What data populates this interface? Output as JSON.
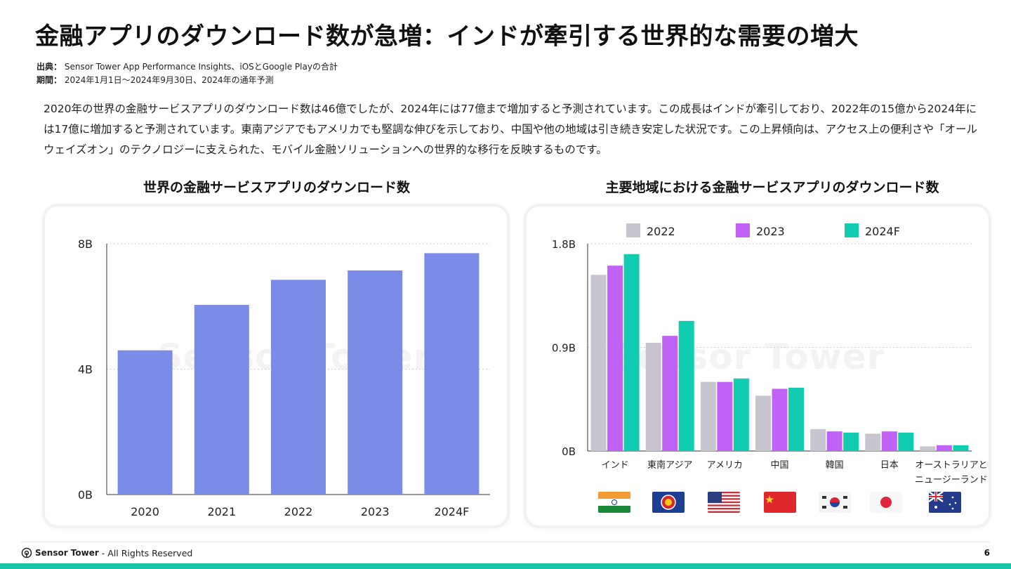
{
  "title": "金融アプリのダウンロード数が急増：インドが牽引する世界的な需要の増大",
  "meta": {
    "source_label": "出典：",
    "source_value": "Sensor Tower App Performance Insights、iOSとGoogle Playの合計",
    "period_label": "期間：",
    "period_value": "2024年1月1日～2024年9月30日、2024年の通年予測"
  },
  "body_text": "2020年の世界の金融サービスアプリのダウンロード数は46億でしたが、2024年には77億まで増加すると予測されています。この成長はインドが牽引しており、2022年の15億から2024年には17億に増加すると予測されています。東南アジアでもアメリカでも堅調な伸びを示しており、中国や他の地域は引き続き安定した状況です。この上昇傾向は、アクセス上の便利さや「オールウェイズオン」のテクノロジーに支えられた、モバイル金融ソリューションへの世界的な移行を反映するものです。",
  "watermark": "Sensor Tower",
  "chart_data": [
    {
      "type": "bar",
      "title": "世界の金融サービスアプリのダウンロード数",
      "categories": [
        "2020",
        "2021",
        "2022",
        "2023",
        "2024F"
      ],
      "values": [
        4.6,
        6.05,
        6.85,
        7.15,
        7.7
      ],
      "ylim": [
        0,
        8
      ],
      "yticks": [
        "0B",
        "4B",
        "8B"
      ],
      "ytick_values": [
        0,
        4,
        8
      ],
      "color": "#7b8ce8",
      "grid": true
    },
    {
      "type": "bar",
      "title": "主要地域における金融サービスアプリのダウンロード数",
      "categories": [
        "インド",
        "東南アジア",
        "アメリカ",
        "中国",
        "韓国",
        "日本",
        "オーストラリアと ニュージーランド"
      ],
      "category_lines": [
        [
          "インド"
        ],
        [
          "東南アジア"
        ],
        [
          "アメリカ"
        ],
        [
          "中国"
        ],
        [
          "韓国"
        ],
        [
          "日本"
        ],
        [
          "オーストラリアと",
          "ニュージーランド"
        ]
      ],
      "series": [
        {
          "name": "2022",
          "color": "#c8c5cf",
          "values": [
            1.53,
            0.94,
            0.6,
            0.48,
            0.19,
            0.15,
            0.04
          ]
        },
        {
          "name": "2023",
          "color": "#c062f5",
          "values": [
            1.61,
            1.0,
            0.6,
            0.54,
            0.17,
            0.17,
            0.05
          ]
        },
        {
          "name": "2024F",
          "color": "#11ccb0",
          "values": [
            1.71,
            1.13,
            0.63,
            0.55,
            0.16,
            0.16,
            0.05
          ]
        }
      ],
      "ylim": [
        0,
        1.8
      ],
      "yticks": [
        "0B",
        "0.9B",
        "1.8B"
      ],
      "ytick_values": [
        0,
        0.9,
        1.8
      ],
      "legend": "top",
      "grid": true
    }
  ],
  "flags": [
    "india-flag",
    "asean-flag",
    "usa-flag",
    "china-flag",
    "korea-flag",
    "japan-flag",
    "australia-flag"
  ],
  "footer": {
    "brand": "Sensor Tower",
    "rights": "- All Rights Reserved",
    "page_number": "6"
  }
}
